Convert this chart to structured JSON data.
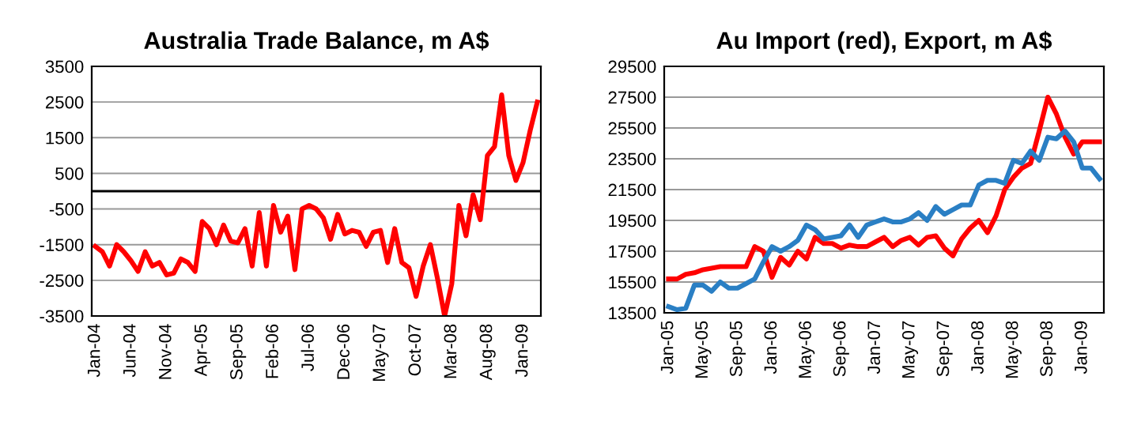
{
  "chart_data": [
    {
      "type": "line",
      "title": "Australia Trade Balance, m A$",
      "categories": [
        "Jan-04",
        null,
        null,
        null,
        null,
        "Jun-04",
        null,
        null,
        null,
        null,
        "Nov-04",
        null,
        null,
        null,
        null,
        "Apr-05",
        null,
        null,
        null,
        null,
        "Sep-05",
        null,
        null,
        null,
        null,
        "Feb-06",
        null,
        null,
        null,
        null,
        "Jul-06",
        null,
        null,
        null,
        null,
        "Dec-06",
        null,
        null,
        null,
        null,
        "May-07",
        null,
        null,
        null,
        null,
        "Oct-07",
        null,
        null,
        null,
        null,
        "Mar-08",
        null,
        null,
        null,
        null,
        "Aug-08",
        null,
        null,
        null,
        null,
        "Jan-09",
        null,
        null
      ],
      "series": [
        {
          "color": "#ff0000",
          "values": [
            -1550,
            -1700,
            -2100,
            -1500,
            -1700,
            -1950,
            -2250,
            -1700,
            -2100,
            -2000,
            -2350,
            -2300,
            -1900,
            -2000,
            -2250,
            -850,
            -1050,
            -1500,
            -950,
            -1400,
            -1450,
            -1050,
            -2100,
            -600,
            -2100,
            -400,
            -1150,
            -700,
            -2200,
            -500,
            -400,
            -500,
            -750,
            -1350,
            -650,
            -1200,
            -1100,
            -1150,
            -1550,
            -1150,
            -1100,
            -2000,
            -1050,
            -2000,
            -2150,
            -2950,
            -2100,
            -1500,
            -2450,
            -3500,
            -2600,
            -400,
            -1250,
            -100,
            -800,
            1000,
            1250,
            2700,
            1000,
            300,
            800,
            1700,
            2500
          ]
        }
      ],
      "ylim": [
        -3500,
        3500
      ],
      "yticks": [
        -3500,
        -2500,
        -1500,
        -500,
        500,
        1500,
        2500,
        3500
      ],
      "grid": "y",
      "ref_lines": [
        {
          "axis": "y",
          "value": 0,
          "color": "#000000"
        }
      ]
    },
    {
      "type": "line",
      "title": "Au Import (red), Export, m A$",
      "categories": [
        "Jan-05",
        null,
        null,
        null,
        "May-05",
        null,
        null,
        null,
        "Sep-05",
        null,
        null,
        null,
        "Jan-06",
        null,
        null,
        null,
        "May-06",
        null,
        null,
        null,
        "Sep-06",
        null,
        null,
        null,
        "Jan-07",
        null,
        null,
        null,
        "May-07",
        null,
        null,
        null,
        "Sep-07",
        null,
        null,
        null,
        "Jan-08",
        null,
        null,
        null,
        "May-08",
        null,
        null,
        null,
        "Sep-08",
        null,
        null,
        null,
        "Jan-09",
        null,
        null
      ],
      "series": [
        {
          "color": "#ff0000",
          "values": [
            15700,
            15700,
            16000,
            16100,
            16300,
            16400,
            16500,
            16500,
            16500,
            16500,
            17800,
            17500,
            15800,
            17100,
            16600,
            17500,
            17000,
            18400,
            18000,
            18000,
            17700,
            17900,
            17800,
            17800,
            18100,
            18400,
            17800,
            18200,
            18400,
            17900,
            18400,
            18500,
            17700,
            17200,
            18300,
            19000,
            19500,
            18700,
            19800,
            21500,
            22300,
            22900,
            23200,
            25300,
            27500,
            26400,
            24900,
            23800,
            24600,
            24600,
            24600
          ]
        },
        {
          "color": "#2a7fc4",
          "values": [
            13900,
            13700,
            13800,
            15300,
            15300,
            14900,
            15500,
            15100,
            15100,
            15400,
            15700,
            16800,
            17800,
            17500,
            17800,
            18200,
            19200,
            18900,
            18300,
            18400,
            18500,
            19200,
            18400,
            19200,
            19400,
            19600,
            19400,
            19400,
            19600,
            20000,
            19500,
            20400,
            19900,
            20200,
            20500,
            20500,
            21800,
            22100,
            22100,
            21900,
            23400,
            23200,
            24000,
            23400,
            24900,
            24800,
            25300,
            24600,
            22900,
            22900,
            22200
          ]
        }
      ],
      "ylim": [
        13500,
        29500
      ],
      "yticks": [
        13500,
        15500,
        17500,
        19500,
        21500,
        23500,
        25500,
        27500,
        29500
      ],
      "grid": "y"
    }
  ]
}
